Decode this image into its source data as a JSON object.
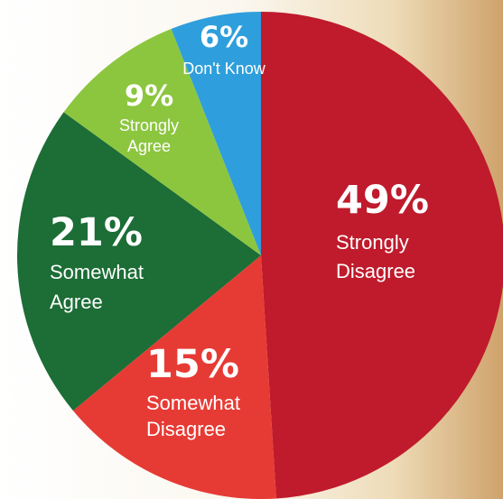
{
  "chart_data": {
    "type": "pie",
    "title": "",
    "slices": [
      {
        "label": "Strongly Disagree",
        "label_lines": [
          "Strongly",
          "Disagree"
        ],
        "value": 49,
        "value_label": "49%",
        "color": "#bf1b2c"
      },
      {
        "label": "Somewhat Disagree",
        "label_lines": [
          "Somewhat",
          "Disagree"
        ],
        "value": 15,
        "value_label": "15%",
        "color": "#e63b34"
      },
      {
        "label": "Somewhat Agree",
        "label_lines": [
          "Somewhat",
          "Agree"
        ],
        "value": 21,
        "value_label": "21%",
        "color": "#1c6d36"
      },
      {
        "label": "Strongly Agree",
        "label_lines": [
          "Strongly",
          "Agree"
        ],
        "value": 9,
        "value_label": "9%",
        "color": "#8cc63f"
      },
      {
        "label": "Don't Know",
        "label_lines": [
          "Don't Know"
        ],
        "value": 6,
        "value_label": "6%",
        "color": "#2e9fdc"
      }
    ],
    "legend": "none",
    "start_angle_deg": 0,
    "direction": "clockwise"
  }
}
